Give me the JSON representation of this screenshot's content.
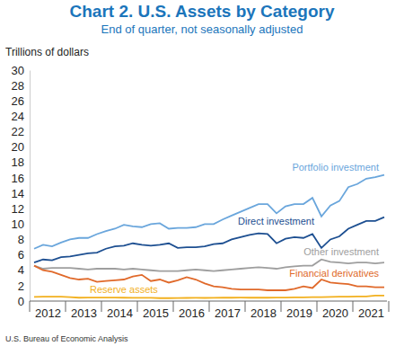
{
  "chart_data": {
    "type": "line",
    "title": "Chart 2. U.S. Assets by Category",
    "subtitle": "End of quarter, not seasonally adjusted",
    "y_label": "Trillions of dollars",
    "source": "U.S. Bureau of Economic Analysis",
    "categories": [
      "2012",
      null,
      null,
      null,
      "2013",
      null,
      null,
      null,
      "2014",
      null,
      null,
      null,
      "2015",
      null,
      null,
      null,
      "2016",
      null,
      null,
      null,
      "2017",
      null,
      null,
      null,
      "2018",
      null,
      null,
      null,
      "2019",
      null,
      null,
      null,
      "2020",
      null,
      null,
      null,
      "2021",
      null,
      null,
      null
    ],
    "ylim": [
      0,
      30
    ],
    "yticks": [
      0,
      2,
      4,
      6,
      8,
      10,
      12,
      14,
      16,
      18,
      20,
      22,
      24,
      26,
      28,
      30
    ],
    "grid": false,
    "series": [
      {
        "name": "Portfolio investment",
        "color": "#6aa6dc",
        "values": [
          6.8,
          7.3,
          7.1,
          7.6,
          8.0,
          8.2,
          8.2,
          8.7,
          9.1,
          9.4,
          9.9,
          9.7,
          9.6,
          10.0,
          10.1,
          9.4,
          9.5,
          9.5,
          9.6,
          10.0,
          10.0,
          10.6,
          11.1,
          11.6,
          12.1,
          12.6,
          12.6,
          11.4,
          12.3,
          12.6,
          12.6,
          13.4,
          11.0,
          12.4,
          13.0,
          14.8,
          15.2,
          15.9,
          16.1,
          16.4
        ]
      },
      {
        "name": "Direct investment",
        "color": "#1d4f91",
        "values": [
          5.0,
          5.4,
          5.3,
          5.7,
          5.8,
          6.0,
          6.2,
          6.3,
          6.8,
          7.1,
          7.2,
          7.5,
          7.3,
          7.2,
          7.3,
          7.5,
          6.9,
          7.0,
          7.0,
          7.1,
          7.4,
          7.5,
          8.0,
          8.3,
          8.6,
          8.8,
          8.7,
          7.5,
          8.1,
          8.3,
          8.2,
          8.7,
          6.9,
          8.0,
          8.4,
          9.4,
          9.9,
          10.4,
          10.4,
          10.9
        ]
      },
      {
        "name": "Other investment",
        "color": "#9e9e9e",
        "values": [
          4.6,
          4.2,
          4.3,
          4.3,
          4.3,
          4.2,
          4.1,
          4.2,
          4.2,
          4.2,
          4.1,
          4.2,
          4.1,
          4.0,
          3.9,
          3.9,
          3.9,
          4.0,
          4.1,
          4.0,
          3.9,
          4.0,
          4.1,
          4.2,
          4.3,
          4.4,
          4.3,
          4.2,
          4.4,
          4.5,
          4.6,
          4.6,
          5.4,
          5.1,
          5.0,
          4.9,
          5.0,
          5.0,
          4.9,
          5.0
        ]
      },
      {
        "name": "Financial derivatives",
        "color": "#e0692a",
        "values": [
          4.6,
          4.0,
          3.8,
          3.4,
          3.0,
          2.8,
          2.9,
          2.5,
          2.6,
          2.7,
          2.8,
          3.2,
          3.4,
          2.6,
          2.8,
          2.4,
          2.7,
          3.1,
          2.8,
          2.3,
          1.9,
          1.8,
          1.6,
          1.5,
          1.5,
          1.5,
          1.4,
          1.4,
          1.4,
          1.6,
          1.9,
          1.7,
          2.8,
          2.4,
          2.3,
          2.2,
          1.9,
          1.9,
          1.8,
          1.8
        ]
      },
      {
        "name": "Reserve assets",
        "color": "#f2b01e",
        "values": [
          0.54,
          0.56,
          0.57,
          0.57,
          0.5,
          0.44,
          0.45,
          0.45,
          0.45,
          0.46,
          0.44,
          0.43,
          0.42,
          0.42,
          0.38,
          0.38,
          0.39,
          0.41,
          0.42,
          0.41,
          0.43,
          0.44,
          0.44,
          0.45,
          0.44,
          0.44,
          0.44,
          0.45,
          0.46,
          0.47,
          0.48,
          0.5,
          0.52,
          0.55,
          0.57,
          0.58,
          0.6,
          0.6,
          0.72,
          0.71
        ]
      }
    ]
  }
}
